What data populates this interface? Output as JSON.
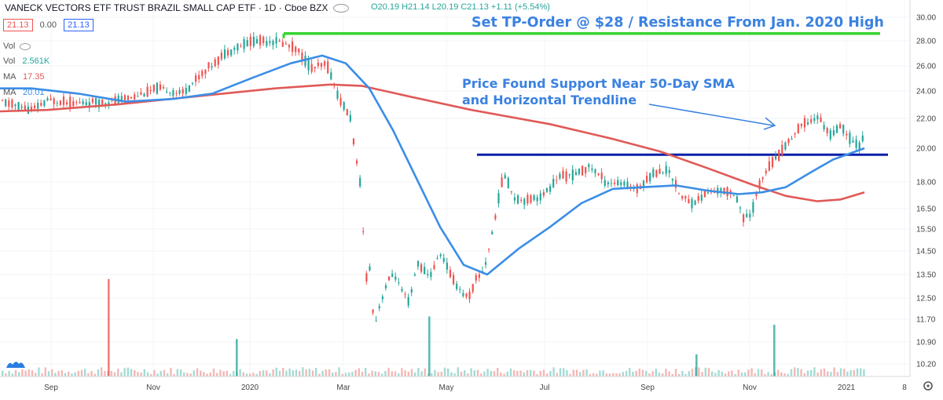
{
  "header": {
    "title": "VANECK VECTORS ETF TRUST BRAZIL SMALL CAP ETF · 1D · Cboe BZX",
    "ohlc": "O20.19 H21.14 L20.19 C21.13 +1.11 (+5.54%)"
  },
  "price_row": {
    "bid": "21.13",
    "spread": "0.00",
    "ask": "21.13"
  },
  "indicators": {
    "vol_label": "Vol",
    "vol_name": "Vol",
    "vol_value": "2.561K",
    "ma1_name": "MA",
    "ma1_value": "17.35",
    "ma2_name": "MA",
    "ma2_value": "20.01"
  },
  "colors": {
    "up": "#26a69a",
    "down": "#ef5350",
    "sma50": "#3b8ee6",
    "sma200": "#e05a57",
    "resistance": "#38d430",
    "support": "#0b1fa8",
    "annotation": "#3b82e0"
  },
  "icons": {
    "eye": "eye-icon",
    "settings": "gear-icon",
    "logo": "tradingview-logo-icon"
  },
  "chart_data": {
    "type": "candlestick",
    "y_axis_ticks": [
      "30.00",
      "28.00",
      "26.00",
      "24.00",
      "22.00",
      "20.00",
      "18.00",
      "16.50",
      "15.50",
      "14.50",
      "13.50",
      "12.50",
      "11.70",
      "10.90",
      "10.20"
    ],
    "x_axis_ticks": [
      "Sep",
      "Nov",
      "2020",
      "Mar",
      "May",
      "Jul",
      "Sep",
      "Nov",
      "2021",
      "8"
    ],
    "scale": "log",
    "annotations": [
      "Set TP-Order @ $28 / Resistance From Jan. 2020 High",
      "Price Found Support Near 50-Day SMA",
      "and Horizontal Trendline"
    ],
    "horizontal_lines": [
      {
        "name": "resistance",
        "value": 28.6
      },
      {
        "name": "support",
        "value": 19.6
      }
    ],
    "series_sma50": [
      [
        0,
        24.2
      ],
      [
        40,
        24.2
      ],
      [
        100,
        23.8
      ],
      [
        160,
        23.2
      ],
      [
        220,
        23.4
      ],
      [
        270,
        23.8
      ],
      [
        320,
        25.0
      ],
      [
        370,
        26.2
      ],
      [
        410,
        26.8
      ],
      [
        440,
        26.2
      ],
      [
        470,
        24.2
      ],
      [
        500,
        21.2
      ],
      [
        530,
        18.2
      ],
      [
        560,
        15.6
      ],
      [
        590,
        13.9
      ],
      [
        620,
        13.5
      ],
      [
        660,
        14.6
      ],
      [
        700,
        15.6
      ],
      [
        740,
        16.8
      ],
      [
        780,
        17.6
      ],
      [
        820,
        17.7
      ],
      [
        860,
        17.8
      ],
      [
        900,
        17.5
      ],
      [
        940,
        17.3
      ],
      [
        970,
        17.4
      ],
      [
        1000,
        17.7
      ],
      [
        1030,
        18.5
      ],
      [
        1060,
        19.3
      ],
      [
        1100,
        20.0
      ]
    ],
    "series_sma200": [
      [
        0,
        22.5
      ],
      [
        60,
        22.6
      ],
      [
        150,
        23.0
      ],
      [
        250,
        23.6
      ],
      [
        350,
        24.2
      ],
      [
        420,
        24.5
      ],
      [
        460,
        24.4
      ],
      [
        520,
        23.6
      ],
      [
        600,
        22.6
      ],
      [
        700,
        21.6
      ],
      [
        780,
        20.6
      ],
      [
        840,
        19.8
      ],
      [
        900,
        18.8
      ],
      [
        960,
        17.8
      ],
      [
        1000,
        17.2
      ],
      [
        1040,
        16.9
      ],
      [
        1070,
        17.0
      ],
      [
        1100,
        17.4
      ]
    ],
    "volume_spikes": [
      [
        137,
        13.3
      ],
      [
        300,
        11.0
      ],
      [
        545,
        11.8
      ],
      [
        885,
        10.5
      ],
      [
        984,
        11.5
      ]
    ],
    "candles_anchor": [
      [
        0,
        23.2
      ],
      [
        40,
        22.6
      ],
      [
        60,
        23.3
      ],
      [
        100,
        23.1
      ],
      [
        140,
        23.2
      ],
      [
        170,
        23.6
      ],
      [
        200,
        24.2
      ],
      [
        230,
        23.8
      ],
      [
        260,
        25.6
      ],
      [
        290,
        27.2
      ],
      [
        320,
        28.0
      ],
      [
        350,
        28.0
      ],
      [
        375,
        27.4
      ],
      [
        395,
        25.8
      ],
      [
        415,
        26.1
      ],
      [
        430,
        23.5
      ],
      [
        445,
        22.0
      ],
      [
        452,
        19.3
      ],
      [
        458,
        17.7
      ],
      [
        464,
        13.3
      ],
      [
        470,
        13.8
      ],
      [
        475,
        11.3
      ],
      [
        480,
        12.0
      ],
      [
        490,
        13.0
      ],
      [
        500,
        13.6
      ],
      [
        510,
        12.8
      ],
      [
        520,
        12.3
      ],
      [
        530,
        14.0
      ],
      [
        545,
        13.4
      ],
      [
        560,
        14.4
      ],
      [
        575,
        13.3
      ],
      [
        588,
        12.7
      ],
      [
        595,
        12.5
      ],
      [
        605,
        13.3
      ],
      [
        615,
        13.7
      ],
      [
        625,
        15.2
      ],
      [
        640,
        18.5
      ],
      [
        655,
        17.0
      ],
      [
        670,
        17.0
      ],
      [
        690,
        17.2
      ],
      [
        710,
        18.3
      ],
      [
        730,
        18.4
      ],
      [
        750,
        18.9
      ],
      [
        770,
        18.0
      ],
      [
        790,
        17.9
      ],
      [
        810,
        17.6
      ],
      [
        830,
        18.5
      ],
      [
        850,
        18.7
      ],
      [
        865,
        17.2
      ],
      [
        880,
        16.8
      ],
      [
        900,
        17.4
      ],
      [
        920,
        17.5
      ],
      [
        935,
        17.3
      ],
      [
        945,
        16.0
      ],
      [
        955,
        16.2
      ],
      [
        965,
        17.8
      ],
      [
        975,
        18.8
      ],
      [
        990,
        19.6
      ],
      [
        1005,
        20.6
      ],
      [
        1020,
        21.6
      ],
      [
        1040,
        22.1
      ],
      [
        1055,
        20.9
      ],
      [
        1070,
        21.4
      ],
      [
        1085,
        20.3
      ],
      [
        1095,
        20.2
      ],
      [
        1098,
        21.13
      ]
    ]
  }
}
